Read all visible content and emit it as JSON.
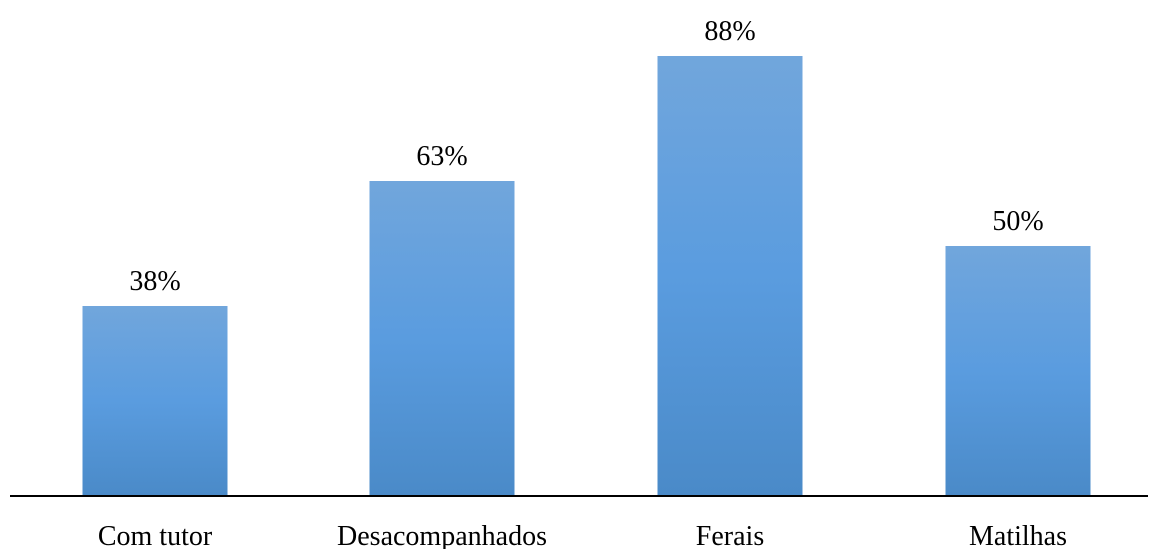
{
  "chart_data": {
    "type": "bar",
    "categories": [
      "Com tutor",
      "Desacompanhados",
      "Ferais",
      "Matilhas"
    ],
    "values": [
      38,
      63,
      88,
      50
    ],
    "value_labels": [
      "38%",
      "63%",
      "88%",
      "50%"
    ],
    "unit": "%",
    "title": "",
    "xlabel": "",
    "ylabel": "",
    "ylim": [
      0,
      100
    ],
    "grid": false,
    "legend": "none",
    "bar_color": "#5B9BD5"
  }
}
